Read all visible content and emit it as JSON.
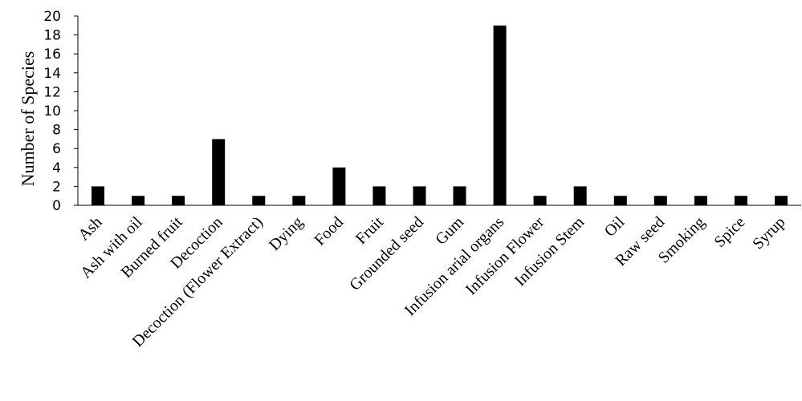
{
  "chart_data": {
    "type": "bar",
    "title": "",
    "xlabel": "",
    "ylabel": "Number of Species",
    "ylim": [
      0,
      20
    ],
    "y_ticks": [
      0,
      2,
      4,
      6,
      8,
      10,
      12,
      14,
      16,
      18,
      20
    ],
    "grid": false,
    "legend": "none",
    "bar_color": "#000000",
    "categories": [
      "Ash",
      "Ash with oil",
      "Burned fruit",
      "Decoction",
      "Decoction (Flower Extract)",
      "Dying",
      "Food",
      "Fruit",
      "Grounded seed",
      "Gum",
      "Infusion arial organs",
      "Infusion Flower",
      "Infusion Stem",
      "Oil",
      "Raw seed",
      "Smoking",
      "Spice",
      "Syrup"
    ],
    "values": [
      2,
      1,
      1,
      7,
      1,
      1,
      4,
      2,
      2,
      2,
      19,
      1,
      2,
      1,
      1,
      1,
      1,
      1
    ]
  }
}
